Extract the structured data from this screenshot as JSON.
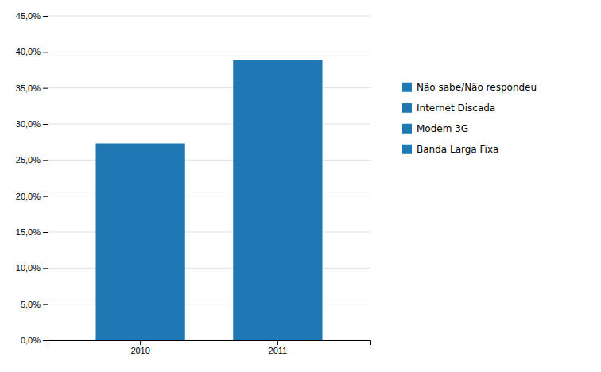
{
  "chart_data": {
    "type": "bar",
    "categories": [
      "2010",
      "2011"
    ],
    "values": [
      0.273,
      0.389
    ],
    "ylim": [
      0,
      0.45
    ],
    "yticks": [
      {
        "value": 0.0,
        "label": "0,0%"
      },
      {
        "value": 0.05,
        "label": "5,0%"
      },
      {
        "value": 0.1,
        "label": "10,0%"
      },
      {
        "value": 0.15,
        "label": "15,0%"
      },
      {
        "value": 0.2,
        "label": "20,0%"
      },
      {
        "value": 0.25,
        "label": "25,0%"
      },
      {
        "value": 0.3,
        "label": "30,0%"
      },
      {
        "value": 0.35,
        "label": "35,0%"
      },
      {
        "value": 0.4,
        "label": "40,0%"
      },
      {
        "value": 0.45,
        "label": "45,0%"
      }
    ],
    "grid": true,
    "legend": "right",
    "legend_labels": [
      "Não sabe/Não respondeu",
      "Internet Discada",
      "Modem 3G",
      "Banda Larga Fixa"
    ]
  }
}
